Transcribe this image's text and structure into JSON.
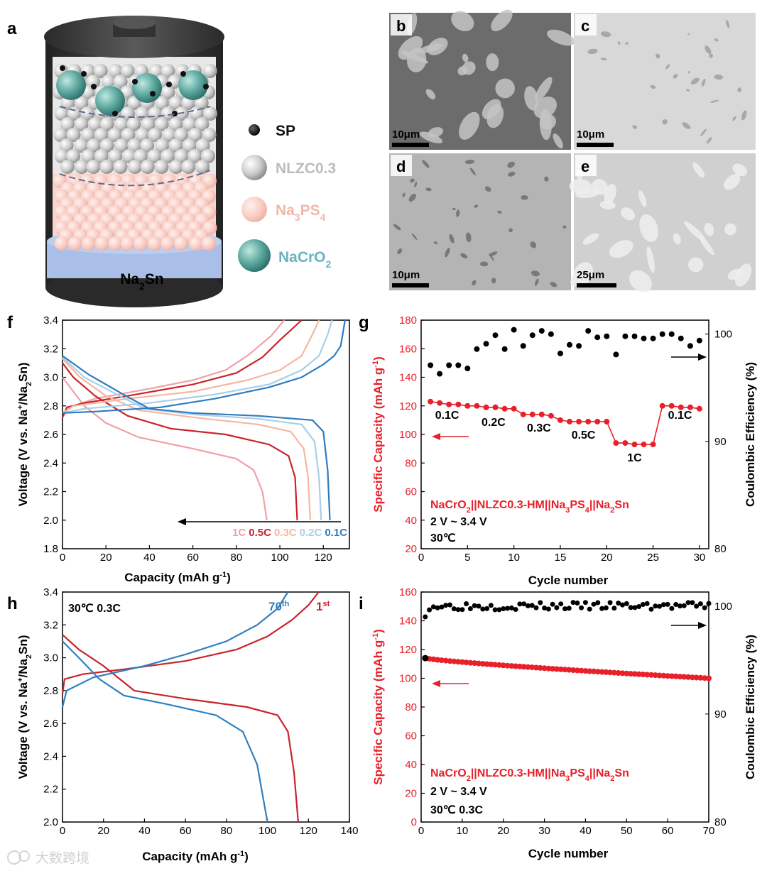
{
  "panels": {
    "a": "a",
    "b": "b",
    "c": "c",
    "d": "d",
    "e": "e",
    "f": "f",
    "g": "g",
    "h": "h",
    "i": "i"
  },
  "schematic": {
    "anode_label": "Na2Sn",
    "legend": [
      {
        "label": "SP",
        "color": "#111111"
      },
      {
        "label": "NLZC0.3",
        "color": "#c8c8c8"
      },
      {
        "label": "Na3PS4",
        "color": "#f6c8c0"
      },
      {
        "label": "NaCrO2",
        "color": "#5aa8a0"
      }
    ]
  },
  "sem": {
    "scale_bars": [
      "10μm",
      "10μm",
      "10μm",
      "25μm"
    ]
  },
  "watermark": "大数跨境",
  "chart_data": [
    {
      "panel": "f",
      "type": "line",
      "xlabel": "Capacity (mAh g-1)",
      "ylabel": "Voltage (V vs. Na+/Na2Sn)",
      "xlim": [
        0,
        132
      ],
      "ylim": [
        1.8,
        3.4
      ],
      "xticks": [
        0,
        20,
        40,
        60,
        80,
        100,
        120
      ],
      "yticks": [
        1.8,
        2.0,
        2.2,
        2.4,
        2.6,
        2.8,
        3.0,
        3.2,
        3.4
      ],
      "series": [
        {
          "name": "1C",
          "color": "#f0a0a8",
          "charge": [
            [
              0,
              2.72
            ],
            [
              3,
              2.79
            ],
            [
              15,
              2.85
            ],
            [
              40,
              2.92
            ],
            [
              60,
              2.98
            ],
            [
              75,
              3.05
            ],
            [
              85,
              3.15
            ],
            [
              96,
              3.29
            ],
            [
              102,
              3.4
            ]
          ],
          "discharge": [
            [
              0,
              3.0
            ],
            [
              5,
              2.9
            ],
            [
              10,
              2.8
            ],
            [
              20,
              2.68
            ],
            [
              35,
              2.58
            ],
            [
              60,
              2.5
            ],
            [
              80,
              2.43
            ],
            [
              88,
              2.35
            ],
            [
              92,
              2.2
            ],
            [
              94,
              2.0
            ]
          ]
        },
        {
          "name": "0.5C",
          "color": "#c8242c",
          "charge": [
            [
              0,
              2.72
            ],
            [
              2,
              2.79
            ],
            [
              10,
              2.82
            ],
            [
              30,
              2.87
            ],
            [
              60,
              2.95
            ],
            [
              80,
              3.03
            ],
            [
              92,
              3.14
            ],
            [
              100,
              3.26
            ],
            [
              110,
              3.4
            ]
          ],
          "discharge": [
            [
              0,
              3.1
            ],
            [
              5,
              3.0
            ],
            [
              15,
              2.87
            ],
            [
              30,
              2.73
            ],
            [
              50,
              2.64
            ],
            [
              75,
              2.6
            ],
            [
              95,
              2.53
            ],
            [
              104,
              2.45
            ],
            [
              107,
              2.3
            ],
            [
              108,
              2.0
            ]
          ]
        },
        {
          "name": "0.3C",
          "color": "#f4b8a0",
          "charge": [
            [
              0,
              2.75
            ],
            [
              5,
              2.8
            ],
            [
              30,
              2.85
            ],
            [
              60,
              2.9
            ],
            [
              85,
              2.98
            ],
            [
              100,
              3.05
            ],
            [
              110,
              3.15
            ],
            [
              115,
              3.3
            ],
            [
              118,
              3.4
            ]
          ],
          "discharge": [
            [
              0,
              3.13
            ],
            [
              8,
              3.0
            ],
            [
              20,
              2.87
            ],
            [
              35,
              2.77
            ],
            [
              60,
              2.72
            ],
            [
              90,
              2.67
            ],
            [
              105,
              2.62
            ],
            [
              111,
              2.5
            ],
            [
              113,
              2.3
            ],
            [
              114,
              2.0
            ]
          ]
        },
        {
          "name": "0.2C",
          "color": "#a8cfe8",
          "charge": [
            [
              0,
              2.75
            ],
            [
              10,
              2.78
            ],
            [
              40,
              2.82
            ],
            [
              70,
              2.88
            ],
            [
              95,
              2.95
            ],
            [
              110,
              3.05
            ],
            [
              118,
              3.15
            ],
            [
              122,
              3.3
            ],
            [
              124,
              3.4
            ]
          ],
          "discharge": [
            [
              0,
              3.14
            ],
            [
              10,
              3.0
            ],
            [
              25,
              2.88
            ],
            [
              38,
              2.78
            ],
            [
              60,
              2.74
            ],
            [
              90,
              2.71
            ],
            [
              110,
              2.67
            ],
            [
              116,
              2.55
            ],
            [
              118,
              2.3
            ],
            [
              119,
              2.0
            ]
          ]
        },
        {
          "name": "0.1C",
          "color": "#2e7cc0",
          "charge": [
            [
              0,
              2.75
            ],
            [
              15,
              2.76
            ],
            [
              45,
              2.79
            ],
            [
              70,
              2.85
            ],
            [
              95,
              2.93
            ],
            [
              110,
              3.0
            ],
            [
              120,
              3.09
            ],
            [
              125,
              3.15
            ],
            [
              128,
              3.22
            ],
            [
              130,
              3.4
            ]
          ],
          "discharge": [
            [
              0,
              3.15
            ],
            [
              12,
              3.02
            ],
            [
              28,
              2.88
            ],
            [
              40,
              2.78
            ],
            [
              60,
              2.75
            ],
            [
              90,
              2.73
            ],
            [
              115,
              2.7
            ],
            [
              120,
              2.62
            ],
            [
              122,
              2.35
            ],
            [
              123,
              2.0
            ]
          ]
        }
      ]
    },
    {
      "panel": "g",
      "type": "scatter",
      "xlabel": "Cycle number",
      "ylabel": "Specific Capacity (mAh g-1)",
      "y2label": "Coulombic Efficiency (%)",
      "xlim": [
        0,
        31
      ],
      "ylim": [
        20,
        180
      ],
      "y2lim": [
        80,
        101.3
      ],
      "xticks": [
        0,
        5,
        10,
        15,
        20,
        25,
        30
      ],
      "yticks": [
        20,
        40,
        60,
        80,
        100,
        120,
        140,
        160,
        180
      ],
      "y2ticks": [
        80,
        90,
        100
      ],
      "x": [
        1,
        2,
        3,
        4,
        5,
        6,
        7,
        8,
        9,
        10,
        11,
        12,
        13,
        14,
        15,
        16,
        17,
        18,
        19,
        20,
        21,
        22,
        23,
        24,
        25,
        26,
        27,
        28,
        29,
        30
      ],
      "capacity": [
        123,
        122,
        121,
        121,
        120,
        120,
        119,
        119,
        118,
        118,
        114,
        114,
        114,
        113,
        110,
        109,
        109,
        109,
        109,
        109,
        94,
        94,
        93,
        93,
        93,
        120,
        120,
        119,
        119,
        118
      ],
      "coulombic_efficiency": [
        97.1,
        96.3,
        97.1,
        97.1,
        96.8,
        98.6,
        99.1,
        99.9,
        98.6,
        100.4,
        98.9,
        99.9,
        100.3,
        100.0,
        98.2,
        99.0,
        98.9,
        100.3,
        99.7,
        99.8,
        98.1,
        99.8,
        99.8,
        99.6,
        99.6,
        100.0,
        100.0,
        99.6,
        98.9,
        99.4
      ],
      "rates": [
        {
          "label": "0.1C",
          "x": 2.8,
          "y": 111
        },
        {
          "label": "0.2C",
          "x": 7.8,
          "y": 106
        },
        {
          "label": "0.3C",
          "x": 12.7,
          "y": 102
        },
        {
          "label": "0.5C",
          "x": 17.5,
          "y": 97
        },
        {
          "label": "1C",
          "x": 23,
          "y": 81
        },
        {
          "label": "0.1C",
          "x": 27.9,
          "y": 111
        }
      ],
      "annotation": [
        "NaCrO2||NLZC0.3-HM||Na3PS4||Na2Sn",
        "2 V ~ 3.4 V",
        "30℃"
      ]
    },
    {
      "panel": "h",
      "type": "line",
      "xlabel": "Capacity (mAh g-1)",
      "ylabel": "Voltage (V vs. Na+/Na2Sn)",
      "xlim": [
        0,
        140
      ],
      "ylim": [
        2.0,
        3.4
      ],
      "xticks": [
        0,
        20,
        40,
        60,
        80,
        100,
        120,
        140
      ],
      "yticks": [
        2.0,
        2.2,
        2.4,
        2.6,
        2.8,
        3.0,
        3.2,
        3.4
      ],
      "annotation": "30℃ 0.3C",
      "series": [
        {
          "name": "1st",
          "color": "#c8242c",
          "charge": [
            [
              0,
              2.78
            ],
            [
              1,
              2.87
            ],
            [
              10,
              2.9
            ],
            [
              30,
              2.93
            ],
            [
              60,
              2.98
            ],
            [
              85,
              3.05
            ],
            [
              100,
              3.13
            ],
            [
              112,
              3.23
            ],
            [
              120,
              3.32
            ],
            [
              125,
              3.4
            ]
          ],
          "discharge": [
            [
              0,
              3.14
            ],
            [
              8,
              3.05
            ],
            [
              20,
              2.95
            ],
            [
              35,
              2.8
            ],
            [
              60,
              2.75
            ],
            [
              90,
              2.7
            ],
            [
              105,
              2.65
            ],
            [
              110,
              2.55
            ],
            [
              113,
              2.3
            ],
            [
              115,
              2.0
            ]
          ]
        },
        {
          "name": "70th",
          "color": "#2e80c0",
          "charge": [
            [
              0,
              2.7
            ],
            [
              2,
              2.8
            ],
            [
              15,
              2.88
            ],
            [
              40,
              2.95
            ],
            [
              60,
              3.02
            ],
            [
              80,
              3.1
            ],
            [
              95,
              3.2
            ],
            [
              105,
              3.3
            ],
            [
              110,
              3.4
            ]
          ],
          "discharge": [
            [
              0,
              3.1
            ],
            [
              8,
              3.0
            ],
            [
              18,
              2.87
            ],
            [
              30,
              2.77
            ],
            [
              50,
              2.72
            ],
            [
              75,
              2.65
            ],
            [
              88,
              2.55
            ],
            [
              95,
              2.35
            ],
            [
              100,
              2.0
            ]
          ]
        }
      ]
    },
    {
      "panel": "i",
      "type": "scatter",
      "xlabel": "Cycle number",
      "ylabel": "Specific Capacity (mAh g-1)",
      "y2label": "Coulombic Efficiency (%)",
      "xlim": [
        0,
        70
      ],
      "ylim": [
        0,
        160
      ],
      "y2lim": [
        80,
        101.3
      ],
      "xticks": [
        0,
        10,
        20,
        30,
        40,
        50,
        60,
        70
      ],
      "yticks": [
        0,
        20,
        40,
        60,
        80,
        100,
        120,
        140,
        160
      ],
      "y2ticks": [
        80,
        90,
        100
      ],
      "capacity_start": 114,
      "capacity_end": 100,
      "cycles": 70,
      "ce_mean": 100.0,
      "annotation": [
        "NaCrO2||NLZC0.3-HM||Na3PS4||Na2Sn",
        "2 V ~ 3.4 V",
        "30℃ 0.3C"
      ]
    }
  ]
}
